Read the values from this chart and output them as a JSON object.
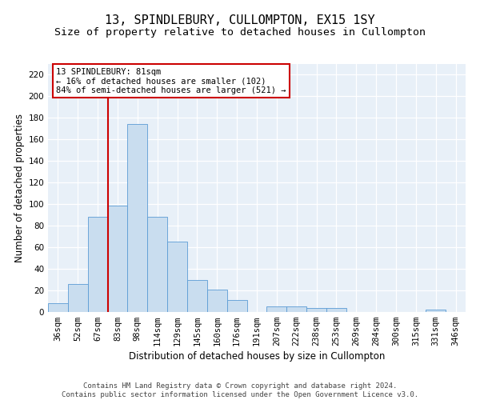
{
  "title": "13, SPINDLEBURY, CULLOMPTON, EX15 1SY",
  "subtitle": "Size of property relative to detached houses in Cullompton",
  "xlabel": "Distribution of detached houses by size in Cullompton",
  "ylabel": "Number of detached properties",
  "categories": [
    "36sqm",
    "52sqm",
    "67sqm",
    "83sqm",
    "98sqm",
    "114sqm",
    "129sqm",
    "145sqm",
    "160sqm",
    "176sqm",
    "191sqm",
    "207sqm",
    "222sqm",
    "238sqm",
    "253sqm",
    "269sqm",
    "284sqm",
    "300sqm",
    "315sqm",
    "331sqm",
    "346sqm"
  ],
  "values": [
    8,
    26,
    88,
    99,
    174,
    88,
    65,
    30,
    21,
    11,
    0,
    5,
    5,
    4,
    4,
    0,
    0,
    0,
    0,
    2,
    0
  ],
  "bar_color": "#c9ddef",
  "bar_edge_color": "#5b9bd5",
  "vline_color": "#cc0000",
  "vline_x": 2.5,
  "annotation_text": "13 SPINDLEBURY: 81sqm\n← 16% of detached houses are smaller (102)\n84% of semi-detached houses are larger (521) →",
  "footer_line1": "Contains HM Land Registry data © Crown copyright and database right 2024.",
  "footer_line2": "Contains public sector information licensed under the Open Government Licence v3.0.",
  "ylim": [
    0,
    230
  ],
  "yticks": [
    0,
    20,
    40,
    60,
    80,
    100,
    120,
    140,
    160,
    180,
    200,
    220
  ],
  "bg_color": "#e8f0f8",
  "fig_bg_color": "#ffffff",
  "title_fontsize": 11,
  "subtitle_fontsize": 9.5,
  "ylabel_fontsize": 8.5,
  "xlabel_fontsize": 8.5,
  "tick_fontsize": 7.5,
  "annotation_fontsize": 7.5,
  "footer_fontsize": 6.5
}
